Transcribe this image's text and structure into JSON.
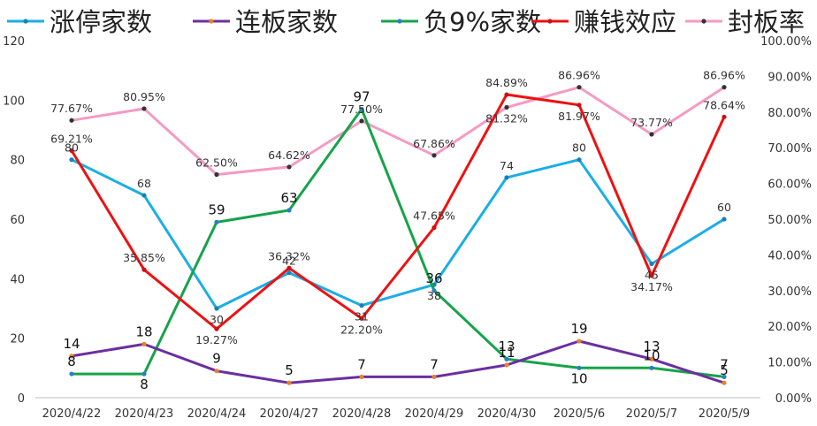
{
  "chart_data": {
    "type": "line",
    "title": "",
    "legend_position": "top",
    "grid": false,
    "categories": [
      "2020/4/22",
      "2020/4/23",
      "2020/4/24",
      "2020/4/27",
      "2020/4/28",
      "2020/4/29",
      "2020/4/30",
      "2020/5/6",
      "2020/5/7",
      "2020/5/9"
    ],
    "y_left": {
      "min": 0,
      "max": 120,
      "step": 20,
      "ticks": [
        "0",
        "20",
        "40",
        "60",
        "80",
        "100",
        "120"
      ]
    },
    "y_right": {
      "min": 0,
      "max": 100,
      "step": 10,
      "ticks": [
        "0.00%",
        "10.00%",
        "20.00%",
        "30.00%",
        "40.00%",
        "50.00%",
        "60.00%",
        "70.00%",
        "80.00%",
        "90.00%",
        "100.00%"
      ]
    },
    "series": [
      {
        "name": "涨停家数",
        "axis": "left",
        "color": "#1aaee6",
        "marker": "#1a7fb8",
        "values": [
          80,
          68,
          30,
          42,
          31,
          38,
          74,
          80,
          45,
          60
        ],
        "labels": [
          "80",
          "68",
          "30",
          "42",
          "31",
          "38",
          "74",
          "80",
          "45",
          "60"
        ]
      },
      {
        "name": "连板家数",
        "axis": "left",
        "color": "#6b2fa0",
        "marker": "#e6822a",
        "values": [
          14,
          18,
          9,
          5,
          7,
          7,
          11,
          19,
          13,
          5
        ],
        "labels": [
          "14",
          "18",
          "9",
          "5",
          "7",
          "7",
          "11",
          "19",
          "13",
          "5"
        ]
      },
      {
        "name": "负9%家数",
        "axis": "left",
        "color": "#16a34a",
        "marker": "#2a7fc0",
        "values": [
          8,
          8,
          59,
          63,
          97,
          36,
          13,
          10,
          10,
          7
        ],
        "labels": [
          "8",
          "8",
          "59",
          "63",
          "97",
          "36",
          "13",
          "10",
          "10",
          "7"
        ]
      },
      {
        "name": "赚钱效应",
        "axis": "right",
        "color": "#ee1111",
        "marker": "#cc1111",
        "values": [
          69.21,
          35.85,
          19.27,
          36.32,
          22.2,
          47.65,
          84.89,
          81.97,
          34.17,
          78.64
        ],
        "labels": [
          "69.21%",
          "35.85%",
          "19.27%",
          "36.32%",
          "22.20%",
          "47.65%",
          "84.89%",
          "81.97%",
          "34.17%",
          "78.64%"
        ]
      },
      {
        "name": "封板率",
        "axis": "right",
        "color": "#f59ac4",
        "marker": "#333333",
        "values": [
          77.67,
          80.95,
          62.5,
          64.62,
          77.5,
          67.86,
          81.32,
          86.96,
          73.77,
          86.96
        ],
        "labels": [
          "77.67%",
          "80.95%",
          "62.50%",
          "64.62%",
          "77.50%",
          "67.86%",
          "81.32%",
          "86.96%",
          "73.77%",
          "86.96%"
        ]
      }
    ]
  }
}
